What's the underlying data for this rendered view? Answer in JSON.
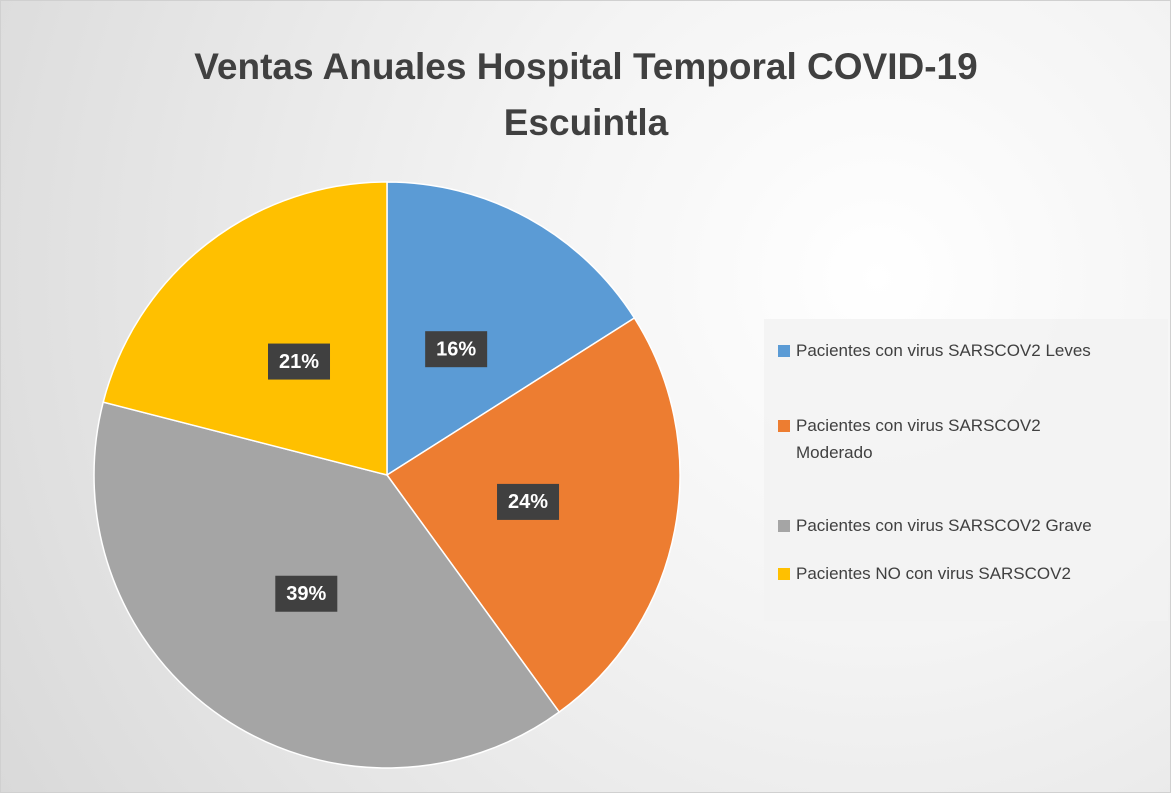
{
  "chart_data": {
    "type": "pie",
    "title": "Ventas Anuales Hospital Temporal COVID-19 Escuintla",
    "categories": [
      "Pacientes con virus SARSCOV2 Leves",
      "Pacientes con virus SARSCOV2 Moderado",
      "Pacientes con virus SARSCOV2 Grave",
      "Pacientes NO con virus SARSCOV2"
    ],
    "values": [
      16,
      24,
      39,
      21
    ],
    "value_labels": [
      "16%",
      "24%",
      "39%",
      "21%"
    ],
    "colors": [
      "#5b9bd5",
      "#ed7d31",
      "#a5a5a5",
      "#ffc000"
    ],
    "legend": "right"
  }
}
